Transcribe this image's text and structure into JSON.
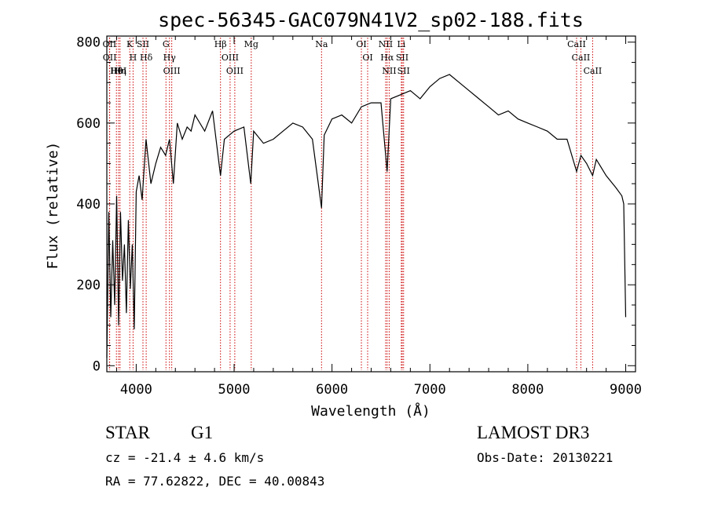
{
  "chart_data": {
    "type": "line",
    "title": "spec-56345-GAC079N41V2_sp02-188.fits",
    "xlabel": "Wavelength (Å)",
    "ylabel": "Flux (relative)",
    "xlim": [
      3700,
      9100
    ],
    "ylim": [
      -15,
      815
    ],
    "xticks": [
      4000,
      5000,
      6000,
      7000,
      8000,
      9000
    ],
    "xtick_labels": [
      "4000",
      "5000",
      "6000",
      "7000",
      "8000",
      "9000"
    ],
    "yticks": [
      0,
      200,
      400,
      600,
      800
    ],
    "ytick_labels": [
      "0",
      "200",
      "400",
      "600",
      "800"
    ],
    "grid": false,
    "line_color": "#000000",
    "marker_color": "#cc0000",
    "spectrum": {
      "x": [
        3700,
        3720,
        3740,
        3760,
        3780,
        3800,
        3820,
        3840,
        3860,
        3880,
        3900,
        3920,
        3940,
        3960,
        3980,
        4000,
        4030,
        4060,
        4100,
        4150,
        4200,
        4250,
        4300,
        4340,
        4380,
        4420,
        4470,
        4520,
        4560,
        4600,
        4700,
        4780,
        4861,
        4900,
        5000,
        5100,
        5170,
        5200,
        5300,
        5400,
        5500,
        5600,
        5700,
        5800,
        5893,
        5920,
        6000,
        6100,
        6200,
        6300,
        6400,
        6500,
        6563,
        6600,
        6700,
        6800,
        6900,
        7000,
        7100,
        7200,
        7300,
        7400,
        7500,
        7600,
        7700,
        7800,
        7900,
        8000,
        8100,
        8200,
        8300,
        8400,
        8498,
        8542,
        8600,
        8662,
        8700,
        8800,
        8900,
        8960,
        8980,
        9000
      ],
      "y": [
        20,
        380,
        120,
        310,
        150,
        420,
        100,
        380,
        210,
        300,
        130,
        360,
        190,
        300,
        90,
        430,
        470,
        410,
        560,
        450,
        500,
        540,
        520,
        560,
        450,
        600,
        560,
        590,
        580,
        620,
        580,
        630,
        470,
        560,
        580,
        590,
        450,
        580,
        550,
        560,
        580,
        600,
        590,
        560,
        390,
        570,
        610,
        620,
        600,
        640,
        650,
        650,
        480,
        660,
        670,
        680,
        660,
        690,
        710,
        720,
        700,
        680,
        660,
        640,
        620,
        630,
        610,
        600,
        590,
        580,
        560,
        560,
        480,
        520,
        500,
        470,
        510,
        470,
        440,
        420,
        400,
        120
      ]
    },
    "lines": [
      {
        "label": "Hθ",
        "wl": 3798
      },
      {
        "label": "OII",
        "wl": 3727
      },
      {
        "label": "OII",
        "wl": 3729
      },
      {
        "label": "HeI",
        "wl": 3820
      },
      {
        "label": "Hη",
        "wl": 3835
      },
      {
        "label": "K",
        "wl": 3934
      },
      {
        "label": "H",
        "wl": 3968
      },
      {
        "label": "SII",
        "wl": 4069
      },
      {
        "label": "Hδ",
        "wl": 4102
      },
      {
        "label": "OIII",
        "wl": 4363
      },
      {
        "label": "Hγ",
        "wl": 4340
      },
      {
        "label": "G",
        "wl": 4304
      },
      {
        "label": "Hβ",
        "wl": 4861
      },
      {
        "label": "OIII",
        "wl": 4959
      },
      {
        "label": "OIII",
        "wl": 5007
      },
      {
        "label": "Mg",
        "wl": 5175
      },
      {
        "label": "Na",
        "wl": 5893
      },
      {
        "label": "OI",
        "wl": 6300
      },
      {
        "label": "OI",
        "wl": 6364
      },
      {
        "label": "Hα",
        "wl": 6563
      },
      {
        "label": "NII",
        "wl": 6548
      },
      {
        "label": "NII",
        "wl": 6584
      },
      {
        "label": "SII",
        "wl": 6717
      },
      {
        "label": "SII",
        "wl": 6731
      },
      {
        "label": "Li",
        "wl": 6708
      },
      {
        "label": "CaII",
        "wl": 8498
      },
      {
        "label": "CaII",
        "wl": 8542
      },
      {
        "label": "CaII",
        "wl": 8662
      }
    ]
  },
  "info": {
    "class": "STAR",
    "subclass": "G1",
    "survey": "LAMOST DR3",
    "cz": "cz = -21.4 ± 4.6 km/s",
    "obs_date": "Obs-Date: 20130221",
    "radec": "RA =  77.62822, DEC =  40.00843"
  }
}
